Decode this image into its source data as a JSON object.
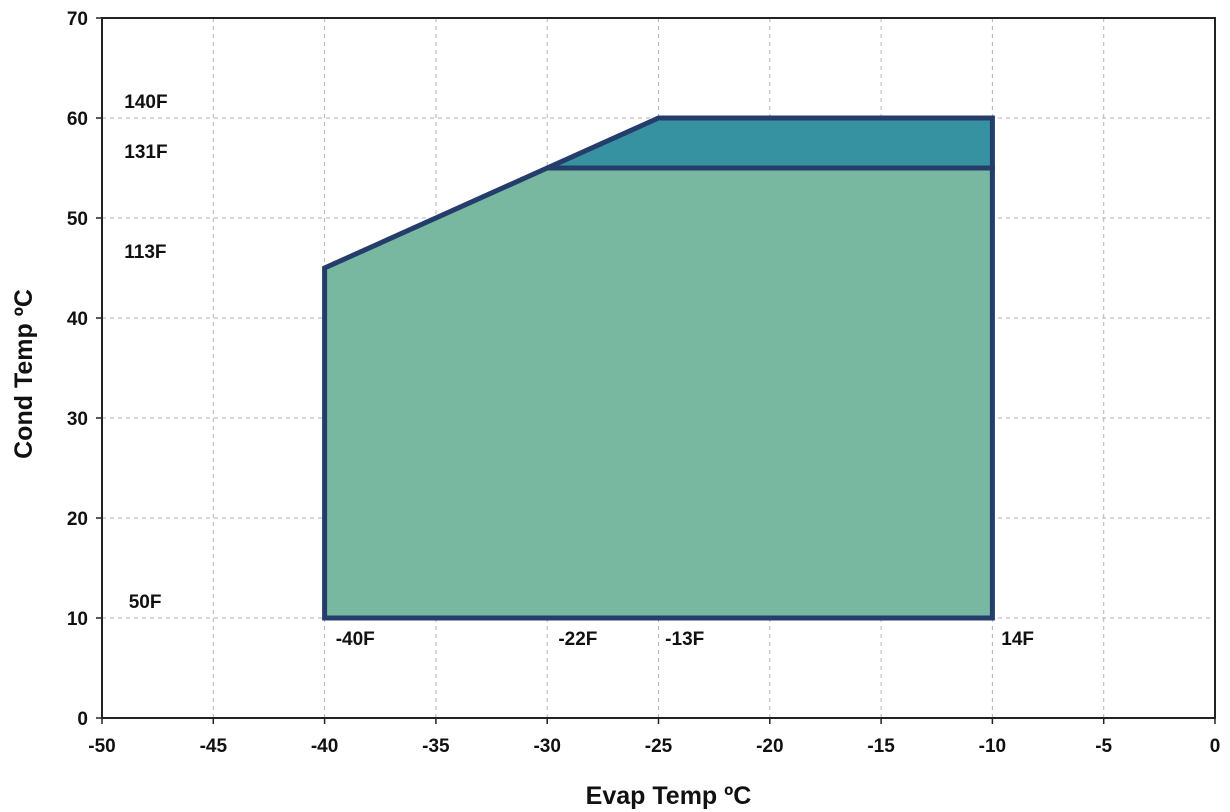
{
  "chart_data": {
    "type": "area",
    "title": "",
    "xlabel": "Evap Temp ºC",
    "ylabel": "Cond Temp ºC",
    "xlim": [
      -50,
      0
    ],
    "ylim": [
      0,
      70
    ],
    "xticks": [
      -50,
      -45,
      -40,
      -35,
      -30,
      -25,
      -20,
      -15,
      -10,
      -5,
      0
    ],
    "yticks": [
      0,
      10,
      20,
      30,
      40,
      50,
      60,
      70
    ],
    "grid": true,
    "colors": {
      "main_region": "#79b8a0",
      "upper_region": "#3692a0",
      "outline": "#253d6b"
    },
    "regions": [
      {
        "name": "",
        "color": "#79b8a0",
        "points": [
          [
            -40,
            10
          ],
          [
            -40,
            45
          ],
          [
            -30,
            55
          ],
          [
            -10,
            55
          ],
          [
            -10,
            10
          ]
        ]
      },
      {
        "name": "",
        "color": "#3692a0",
        "points": [
          [
            -30,
            55
          ],
          [
            -25,
            60
          ],
          [
            -10,
            60
          ],
          [
            -10,
            55
          ]
        ]
      }
    ],
    "annotations": [
      {
        "text": "140F",
        "x": -49,
        "y": 60,
        "anchor": "above-left"
      },
      {
        "text": "131F",
        "x": -49,
        "y": 55,
        "anchor": "above-left"
      },
      {
        "text": "113F",
        "x": -49,
        "y": 45,
        "anchor": "above-left"
      },
      {
        "text": "50F",
        "x": -48.8,
        "y": 10,
        "anchor": "above-left"
      },
      {
        "text": "-40F",
        "x": -39.5,
        "y": 10,
        "anchor": "below-left"
      },
      {
        "text": "-22F",
        "x": -29.5,
        "y": 10,
        "anchor": "below-left"
      },
      {
        "text": "-13F",
        "x": -24.7,
        "y": 10,
        "anchor": "below-left"
      },
      {
        "text": "14F",
        "x": -9.6,
        "y": 10,
        "anchor": "below-left"
      }
    ]
  }
}
